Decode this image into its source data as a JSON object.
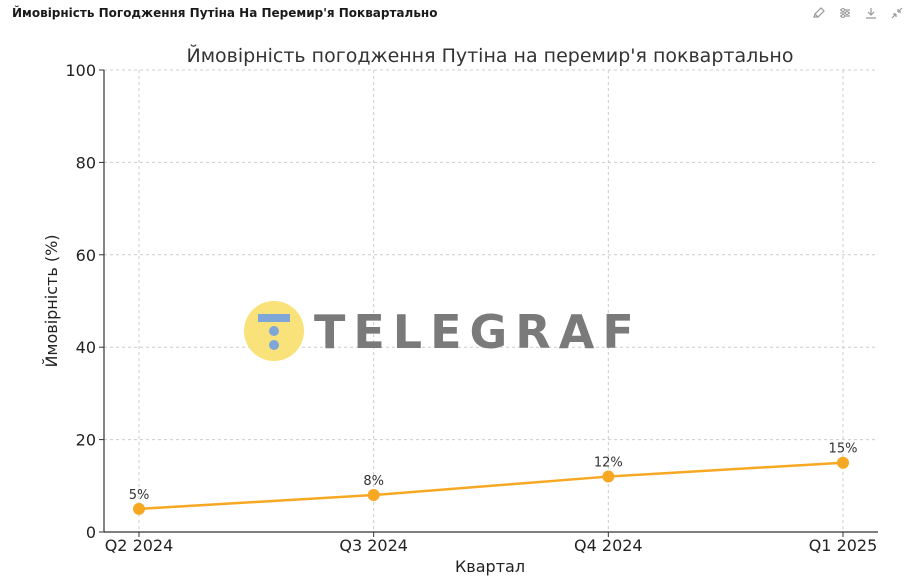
{
  "header": {
    "title": "Ймовірність Погодження Путіна На Перемир'я Поквартально"
  },
  "toolbar": {
    "icons": [
      "edit-icon",
      "settings-icon",
      "download-icon",
      "collapse-icon"
    ]
  },
  "watermark": {
    "text": "TELEGRAF"
  },
  "colors": {
    "line": "#F7A823",
    "marker": "#F7A823",
    "grid": "#cccccc",
    "axis": "#333333",
    "watermark_circle": "#F9E27A",
    "watermark_icon": "#7EA6D8",
    "watermark_text": "#7a7a7a"
  },
  "chart_data": {
    "type": "line",
    "title": "Ймовірність погодження Путіна на перемир'я поквартально",
    "xlabel": "Квартал",
    "ylabel": "Ймовірність (%)",
    "categories": [
      "Q2 2024",
      "Q3 2024",
      "Q4 2024",
      "Q1 2025"
    ],
    "values": [
      5,
      8,
      12,
      15
    ],
    "data_labels": [
      "5%",
      "8%",
      "12%",
      "15%"
    ],
    "ylim": [
      0,
      100
    ],
    "yticks": [
      0,
      20,
      40,
      60,
      80,
      100
    ],
    "grid": true,
    "legend": "none"
  }
}
